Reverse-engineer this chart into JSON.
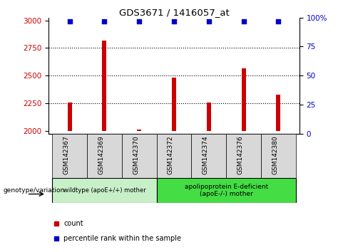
{
  "title": "GDS3671 / 1416057_at",
  "samples": [
    "GSM142367",
    "GSM142369",
    "GSM142370",
    "GSM142372",
    "GSM142374",
    "GSM142376",
    "GSM142380"
  ],
  "counts": [
    2255,
    2820,
    2010,
    2480,
    2255,
    2565,
    2325
  ],
  "percentile_ranks": [
    97,
    97,
    97,
    97,
    97,
    97,
    97
  ],
  "ylim_left": [
    1975,
    3025
  ],
  "ylim_right": [
    0,
    100
  ],
  "yticks_left": [
    2000,
    2250,
    2500,
    2750,
    3000
  ],
  "yticks_right": [
    0,
    25,
    50,
    75,
    100
  ],
  "yticklabels_right": [
    "0",
    "25",
    "50",
    "75",
    "100%"
  ],
  "bar_color": "#cc0000",
  "dot_color": "#0000cc",
  "group1_label": "wildtype (apoE+/+) mother",
  "group2_label": "apolipoprotein E-deficient\n(apoE-/-) mother",
  "group1_indices": [
    0,
    1,
    2
  ],
  "group2_indices": [
    3,
    4,
    5,
    6
  ],
  "group1_color": "#c8f0c8",
  "group2_color": "#44dd44",
  "legend_label_count": "count",
  "legend_label_pct": "percentile rank within the sample",
  "genotype_label": "genotype/variation",
  "axis_label_color_left": "#cc0000",
  "axis_label_color_right": "#0000cc",
  "dotted_grid_values": [
    2250,
    2500,
    2750
  ],
  "bar_width": 0.12,
  "tick_bg_color": "#d8d8d8"
}
